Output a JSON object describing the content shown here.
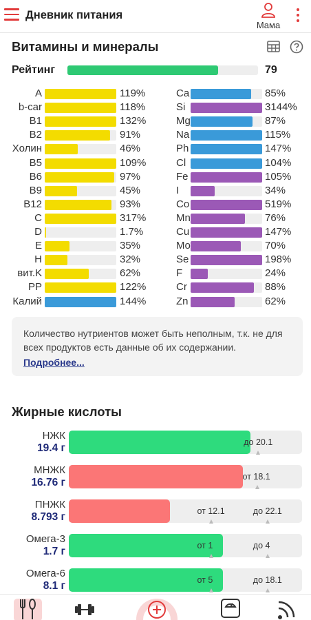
{
  "app": {
    "title": "Дневник питания",
    "user_name": "Мама"
  },
  "vitamins_section": {
    "title": "Витамины и минералы"
  },
  "rating": {
    "label": "Рейтинг",
    "value": "79",
    "fraction": 0.79
  },
  "vitamins": [
    {
      "name": "A",
      "pct": "119%",
      "value": 119,
      "color": "#f3dc00"
    },
    {
      "name": "b-car",
      "pct": "118%",
      "value": 118,
      "color": "#f3dc00"
    },
    {
      "name": "B1",
      "pct": "132%",
      "value": 132,
      "color": "#f3dc00"
    },
    {
      "name": "B2",
      "pct": "91%",
      "value": 91,
      "color": "#f3dc00"
    },
    {
      "name": "Холин",
      "pct": "46%",
      "value": 46,
      "color": "#f3dc00"
    },
    {
      "name": "B5",
      "pct": "109%",
      "value": 109,
      "color": "#f3dc00"
    },
    {
      "name": "B6",
      "pct": "97%",
      "value": 97,
      "color": "#f3dc00"
    },
    {
      "name": "B9",
      "pct": "45%",
      "value": 45,
      "color": "#f3dc00"
    },
    {
      "name": "B12",
      "pct": "93%",
      "value": 93,
      "color": "#f3dc00"
    },
    {
      "name": "C",
      "pct": "317%",
      "value": 317,
      "color": "#f3dc00"
    },
    {
      "name": "D",
      "pct": "1.7%",
      "value": 1.7,
      "color": "#f3dc00"
    },
    {
      "name": "E",
      "pct": "35%",
      "value": 35,
      "color": "#f3dc00"
    },
    {
      "name": "H",
      "pct": "32%",
      "value": 32,
      "color": "#f3dc00"
    },
    {
      "name": "вит.K",
      "pct": "62%",
      "value": 62,
      "color": "#f3dc00"
    },
    {
      "name": "PP",
      "pct": "122%",
      "value": 122,
      "color": "#f3dc00"
    },
    {
      "name": "Калий",
      "pct": "144%",
      "value": 144,
      "color": "#3a9ad9"
    }
  ],
  "minerals": [
    {
      "name": "Ca",
      "pct": "85%",
      "value": 85,
      "color": "#3a9ad9"
    },
    {
      "name": "Si",
      "pct": "3144%",
      "value": 3144,
      "color": "#9b59b6"
    },
    {
      "name": "Mg",
      "pct": "87%",
      "value": 87,
      "color": "#3a9ad9"
    },
    {
      "name": "Na",
      "pct": "115%",
      "value": 115,
      "color": "#3a9ad9"
    },
    {
      "name": "Ph",
      "pct": "147%",
      "value": 147,
      "color": "#3a9ad9"
    },
    {
      "name": "Cl",
      "pct": "104%",
      "value": 104,
      "color": "#3a9ad9"
    },
    {
      "name": "Fe",
      "pct": "105%",
      "value": 105,
      "color": "#9b59b6"
    },
    {
      "name": "I",
      "pct": "34%",
      "value": 34,
      "color": "#9b59b6"
    },
    {
      "name": "Co",
      "pct": "519%",
      "value": 519,
      "color": "#9b59b6"
    },
    {
      "name": "Mn",
      "pct": "76%",
      "value": 76,
      "color": "#9b59b6"
    },
    {
      "name": "Cu",
      "pct": "147%",
      "value": 147,
      "color": "#9b59b6"
    },
    {
      "name": "Mo",
      "pct": "70%",
      "value": 70,
      "color": "#9b59b6"
    },
    {
      "name": "Se",
      "pct": "198%",
      "value": 198,
      "color": "#9b59b6"
    },
    {
      "name": "F",
      "pct": "24%",
      "value": 24,
      "color": "#9b59b6"
    },
    {
      "name": "Cr",
      "pct": "88%",
      "value": 88,
      "color": "#9b59b6"
    },
    {
      "name": "Zn",
      "pct": "62%",
      "value": 62,
      "color": "#9b59b6"
    }
  ],
  "info": {
    "text": "Количество нутриентов может быть неполным, т.к. не для всех продуктов есть данные об их содержании.",
    "link": "Подробнее..."
  },
  "fatty_section": {
    "title": "Жирные кислоты"
  },
  "fatty_acids": [
    {
      "name": "НЖК",
      "amount": "19.4 г",
      "fill": 0.78,
      "color": "#2edb7d",
      "labels": [
        {
          "text": "до 20.1",
          "pos": 0.75
        }
      ]
    },
    {
      "name": "МНЖК",
      "amount": "16.76 г",
      "fill": 0.745,
      "color": "#fb7676",
      "labels": [
        {
          "text": "от 18.1",
          "pos": 0.745
        }
      ]
    },
    {
      "name": "ПНЖК",
      "amount": "8.793 г",
      "fill": 0.435,
      "color": "#fb7676",
      "labels": [
        {
          "text": "от 12.1",
          "pos": 0.55
        },
        {
          "text": "до 22.1",
          "pos": 0.79
        }
      ]
    },
    {
      "name": "Омега-3",
      "amount": "1.7 г",
      "fill": 0.66,
      "color": "#2edb7d",
      "labels": [
        {
          "text": "от 1",
          "pos": 0.55
        },
        {
          "text": "до 4",
          "pos": 0.79
        }
      ]
    },
    {
      "name": "Омега-6",
      "amount": "8.1 г",
      "fill": 0.66,
      "color": "#2edb7d",
      "labels": [
        {
          "text": "от 5",
          "pos": 0.55
        },
        {
          "text": "до 18.1",
          "pos": 0.79
        }
      ]
    }
  ],
  "colors": {
    "accent": "#e23b3b",
    "rating": "#2ec973",
    "vitamin": "#f3dc00",
    "mineral_blue": "#3a9ad9",
    "mineral_purple": "#9b59b6"
  },
  "nav": {
    "items": [
      {
        "name": "food-icon",
        "active": true
      },
      {
        "name": "dumbbell-icon",
        "active": false
      },
      {
        "name": "add-plus-icon",
        "active": false
      },
      {
        "name": "scale-icon",
        "active": false
      },
      {
        "name": "feed-icon",
        "active": false
      }
    ]
  }
}
